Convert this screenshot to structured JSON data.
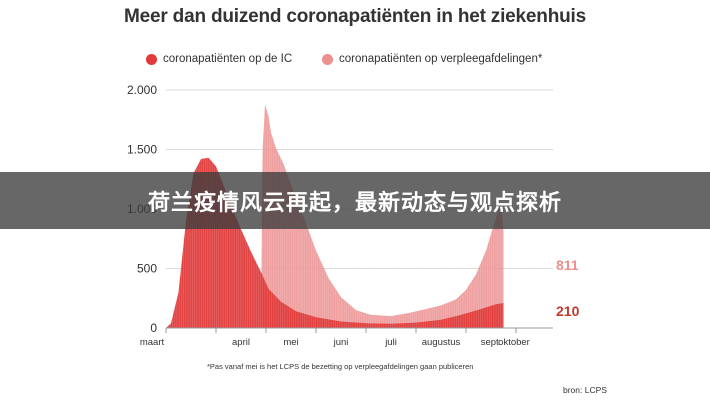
{
  "chart_data": {
    "type": "area",
    "title": "Meer dan duizend coronapatiënten in het ziekenhuis",
    "xlabel": "",
    "ylabel": "",
    "ylim": [
      0,
      2000
    ],
    "yticks": [
      0,
      500,
      1000,
      1500,
      2000
    ],
    "ytick_labels": [
      "0",
      "500",
      "1.000",
      "1.500",
      "2.000"
    ],
    "x_categories": [
      "maart",
      "april",
      "mei",
      "juni",
      "juli",
      "augustus",
      "sept.",
      "oktober"
    ],
    "legend_position": "top",
    "grid": true,
    "series": [
      {
        "name": "coronapatiënten op de IC",
        "color": "#e03a3a",
        "end_label": "210",
        "points": [
          [
            0.0,
            0
          ],
          [
            0.1,
            40
          ],
          [
            0.25,
            300
          ],
          [
            0.4,
            900
          ],
          [
            0.55,
            1300
          ],
          [
            0.7,
            1420
          ],
          [
            0.85,
            1430
          ],
          [
            1.0,
            1360
          ],
          [
            1.15,
            1200
          ],
          [
            1.3,
            1030
          ],
          [
            1.5,
            830
          ],
          [
            1.7,
            640
          ],
          [
            1.9,
            470
          ],
          [
            2.05,
            330
          ],
          [
            2.3,
            220
          ],
          [
            2.6,
            140
          ],
          [
            3.0,
            90
          ],
          [
            3.5,
            55
          ],
          [
            4.0,
            40
          ],
          [
            4.5,
            35
          ],
          [
            5.0,
            45
          ],
          [
            5.5,
            70
          ],
          [
            5.9,
            110
          ],
          [
            6.3,
            160
          ],
          [
            6.6,
            200
          ],
          [
            6.75,
            210
          ]
        ]
      },
      {
        "name": "coronapatiënten op verpleegafdelingen*",
        "color": "#ec8f8f",
        "end_label": "811",
        "points": [
          [
            1.9,
            0
          ],
          [
            1.93,
            1480
          ],
          [
            1.98,
            1880
          ],
          [
            2.05,
            1780
          ],
          [
            2.1,
            1640
          ],
          [
            2.2,
            1510
          ],
          [
            2.35,
            1380
          ],
          [
            2.55,
            1150
          ],
          [
            2.8,
            880
          ],
          [
            3.0,
            650
          ],
          [
            3.25,
            420
          ],
          [
            3.5,
            260
          ],
          [
            3.8,
            150
          ],
          [
            4.1,
            110
          ],
          [
            4.5,
            100
          ],
          [
            4.9,
            130
          ],
          [
            5.2,
            160
          ],
          [
            5.5,
            190
          ],
          [
            5.8,
            240
          ],
          [
            6.0,
            320
          ],
          [
            6.2,
            450
          ],
          [
            6.4,
            650
          ],
          [
            6.55,
            860
          ],
          [
            6.7,
            1050
          ],
          [
            6.75,
            811
          ]
        ]
      }
    ]
  },
  "legend": {
    "ic_label": "coronapatiënten op de IC",
    "ward_label": "coronapatiënten op verpleegafdelingen*"
  },
  "footnote": "*Pas vanaf mei is het LCPS de bezetting op verpleegafdelingen gaan publiceren",
  "source": "bron: LCPS",
  "banner": {
    "text": "荷兰疫情风云再起，最新动态与观点探析"
  }
}
